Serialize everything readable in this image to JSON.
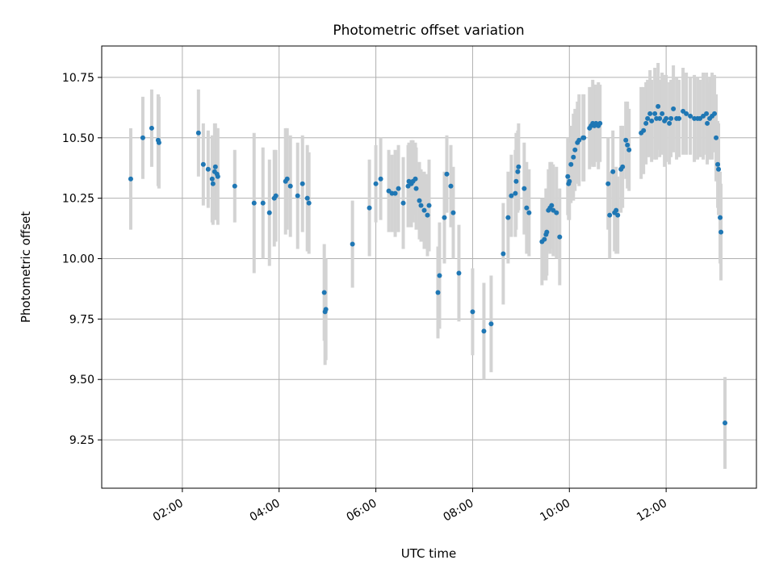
{
  "chart_data": {
    "type": "scatter",
    "title": "Photometric offset variation",
    "xlabel": "UTC time",
    "ylabel": "Photometric offset",
    "x_unit": "UTC hour",
    "xlim": [
      "00:20",
      "13:52"
    ],
    "ylim": [
      9.05,
      10.88
    ],
    "x_ticks": [
      "02:00",
      "04:00",
      "06:00",
      "08:00",
      "10:00",
      "12:00"
    ],
    "y_ticks": [
      "9.25",
      "9.50",
      "9.75",
      "10.00",
      "10.25",
      "10.50",
      "10.75"
    ],
    "grid": true,
    "point_color": "#1f77b4",
    "errorbar_color": "#d3d3d3",
    "series": [
      {
        "x": [
          "00:56",
          "01:11",
          "01:22",
          "01:30",
          "01:31",
          "02:20",
          "02:26",
          "02:32",
          "02:37",
          "02:38",
          "02:40",
          "02:41",
          "02:43",
          "02:44",
          "03:05",
          "03:29",
          "03:40",
          "03:48",
          "03:54",
          "03:56",
          "04:08",
          "04:10",
          "04:14",
          "04:23",
          "04:29",
          "04:35",
          "04:37",
          "04:56",
          "04:57",
          "04:58",
          "05:31",
          "05:52",
          "06:00",
          "06:06",
          "06:16",
          "06:20",
          "06:24",
          "06:28",
          "06:34",
          "06:40",
          "06:41",
          "06:44",
          "06:46",
          "06:49",
          "06:50",
          "06:54",
          "06:56",
          "07:00",
          "07:04",
          "07:06",
          "07:17",
          "07:19",
          "07:25",
          "07:28",
          "07:33",
          "07:36",
          "07:43",
          "08:00",
          "08:14",
          "08:23",
          "08:38",
          "08:44",
          "08:48",
          "08:53",
          "08:54",
          "08:56",
          "08:57",
          "09:04",
          "09:07",
          "09:10",
          "09:26",
          "09:29",
          "09:31",
          "09:32",
          "09:34",
          "09:36",
          "09:38",
          "09:40",
          "09:44",
          "09:48",
          "09:58",
          "09:59",
          "10:00",
          "10:02",
          "10:05",
          "10:07",
          "10:10",
          "10:12",
          "10:17",
          "10:18",
          "10:25",
          "10:27",
          "10:29",
          "10:31",
          "10:33",
          "10:36",
          "10:38",
          "10:48",
          "10:50",
          "10:54",
          "10:56",
          "10:58",
          "11:00",
          "11:04",
          "11:06",
          "11:10",
          "11:12",
          "11:14",
          "11:29",
          "11:32",
          "11:35",
          "11:37",
          "11:40",
          "11:42",
          "11:46",
          "11:48",
          "11:50",
          "11:52",
          "11:55",
          "11:58",
          "12:00",
          "12:04",
          "12:06",
          "12:09",
          "12:13",
          "12:16",
          "12:21",
          "12:25",
          "12:30",
          "12:35",
          "12:39",
          "12:42",
          "12:46",
          "12:50",
          "12:51",
          "12:54",
          "12:57",
          "13:00",
          "13:02",
          "13:04",
          "13:05",
          "13:07",
          "13:08",
          "13:13"
        ],
        "y": [
          10.33,
          10.5,
          10.54,
          10.49,
          10.48,
          10.52,
          10.39,
          10.37,
          10.33,
          10.31,
          10.36,
          10.38,
          10.35,
          10.34,
          10.3,
          10.23,
          10.23,
          10.19,
          10.25,
          10.26,
          10.32,
          10.33,
          10.3,
          10.26,
          10.31,
          10.25,
          10.23,
          9.86,
          9.78,
          9.79,
          10.06,
          10.21,
          10.31,
          10.33,
          10.28,
          10.27,
          10.27,
          10.29,
          10.23,
          10.3,
          10.32,
          10.31,
          10.32,
          10.33,
          10.29,
          10.24,
          10.22,
          10.2,
          10.18,
          10.22,
          9.86,
          9.93,
          10.17,
          10.35,
          10.3,
          10.19,
          9.94,
          9.78,
          9.7,
          9.73,
          10.02,
          10.17,
          10.26,
          10.27,
          10.32,
          10.36,
          10.38,
          10.29,
          10.21,
          10.19,
          10.07,
          10.08,
          10.1,
          10.11,
          10.2,
          10.21,
          10.22,
          10.2,
          10.19,
          10.09,
          10.34,
          10.31,
          10.32,
          10.39,
          10.42,
          10.45,
          10.48,
          10.49,
          10.5,
          10.5,
          10.54,
          10.55,
          10.56,
          10.55,
          10.56,
          10.55,
          10.56,
          10.31,
          10.18,
          10.36,
          10.19,
          10.2,
          10.18,
          10.37,
          10.38,
          10.49,
          10.47,
          10.45,
          10.52,
          10.53,
          10.56,
          10.58,
          10.6,
          10.57,
          10.6,
          10.58,
          10.63,
          10.58,
          10.6,
          10.57,
          10.58,
          10.56,
          10.58,
          10.62,
          10.58,
          10.58,
          10.61,
          10.6,
          10.59,
          10.58,
          10.58,
          10.58,
          10.59,
          10.6,
          10.56,
          10.58,
          10.59,
          10.6,
          10.5,
          10.39,
          10.37,
          10.17,
          10.11,
          9.32
        ],
        "err": [
          0.21,
          0.17,
          0.16,
          0.19,
          0.19,
          0.18,
          0.17,
          0.16,
          0.18,
          0.17,
          0.2,
          0.18,
          0.19,
          0.2,
          0.15,
          0.29,
          0.23,
          0.22,
          0.2,
          0.19,
          0.22,
          0.21,
          0.21,
          0.22,
          0.2,
          0.22,
          0.21,
          0.2,
          0.22,
          0.21,
          0.18,
          0.2,
          0.16,
          0.17,
          0.17,
          0.16,
          0.18,
          0.18,
          0.19,
          0.17,
          0.16,
          0.18,
          0.17,
          0.15,
          0.17,
          0.16,
          0.15,
          0.16,
          0.17,
          0.19,
          0.19,
          0.22,
          0.19,
          0.16,
          0.17,
          0.19,
          0.2,
          0.18,
          0.2,
          0.2,
          0.21,
          0.19,
          0.17,
          0.18,
          0.2,
          0.17,
          0.18,
          0.19,
          0.19,
          0.18,
          0.18,
          0.17,
          0.19,
          0.18,
          0.17,
          0.19,
          0.18,
          0.19,
          0.19,
          0.2,
          0.16,
          0.15,
          0.16,
          0.16,
          0.18,
          0.17,
          0.17,
          0.19,
          0.18,
          0.18,
          0.17,
          0.16,
          0.18,
          0.17,
          0.16,
          0.18,
          0.16,
          0.19,
          0.18,
          0.17,
          0.16,
          0.18,
          0.16,
          0.18,
          0.17,
          0.16,
          0.18,
          0.17,
          0.19,
          0.18,
          0.17,
          0.16,
          0.18,
          0.17,
          0.19,
          0.17,
          0.18,
          0.16,
          0.17,
          0.19,
          0.18,
          0.17,
          0.16,
          0.18,
          0.17,
          0.16,
          0.18,
          0.17,
          0.16,
          0.18,
          0.17,
          0.16,
          0.18,
          0.17,
          0.17,
          0.17,
          0.18,
          0.16,
          0.18,
          0.18,
          0.19,
          0.19,
          0.2,
          0.19
        ]
      }
    ]
  }
}
